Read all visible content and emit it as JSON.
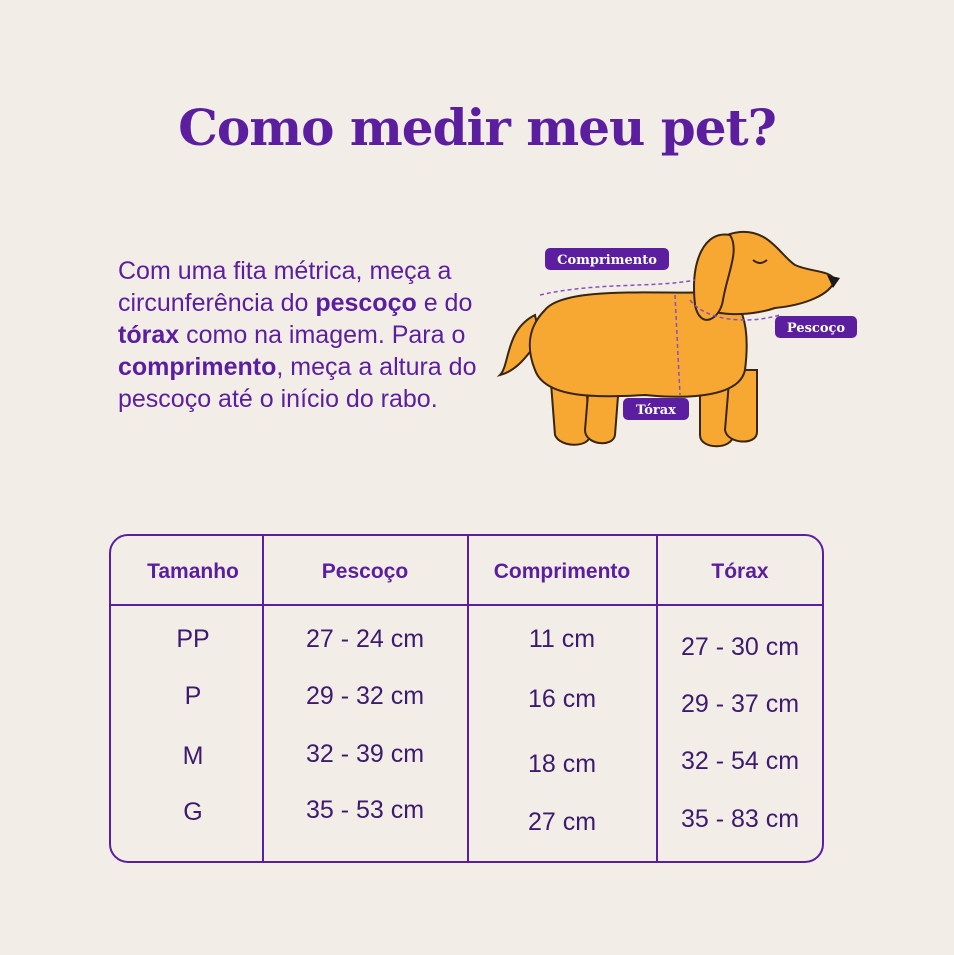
{
  "title": "Como medir meu pet?",
  "instructions": [
    "Com uma fita métrica, meça a circunferência do ",
    "pescoço",
    " e do ",
    "tórax",
    " como na imagem. Para o ",
    "comprimento",
    ", meça a altura do pescoço até o início do rabo."
  ],
  "diagram": {
    "labels": {
      "length": "Comprimento",
      "neck": "Pescoço",
      "chest": "Tórax"
    }
  },
  "table": {
    "headers": [
      "Tamanho",
      "Pescoço",
      "Comprimento",
      "Tórax"
    ],
    "rows": [
      [
        "PP",
        "27 - 24 cm",
        "11 cm",
        "27 - 30 cm"
      ],
      [
        "P",
        "29 - 32 cm",
        "16 cm",
        "29 - 37 cm"
      ],
      [
        "M",
        "32 - 39 cm",
        "18 cm",
        "32 - 54 cm"
      ],
      [
        "G",
        "35 - 53 cm",
        "27 cm",
        "35 - 83 cm"
      ]
    ]
  }
}
